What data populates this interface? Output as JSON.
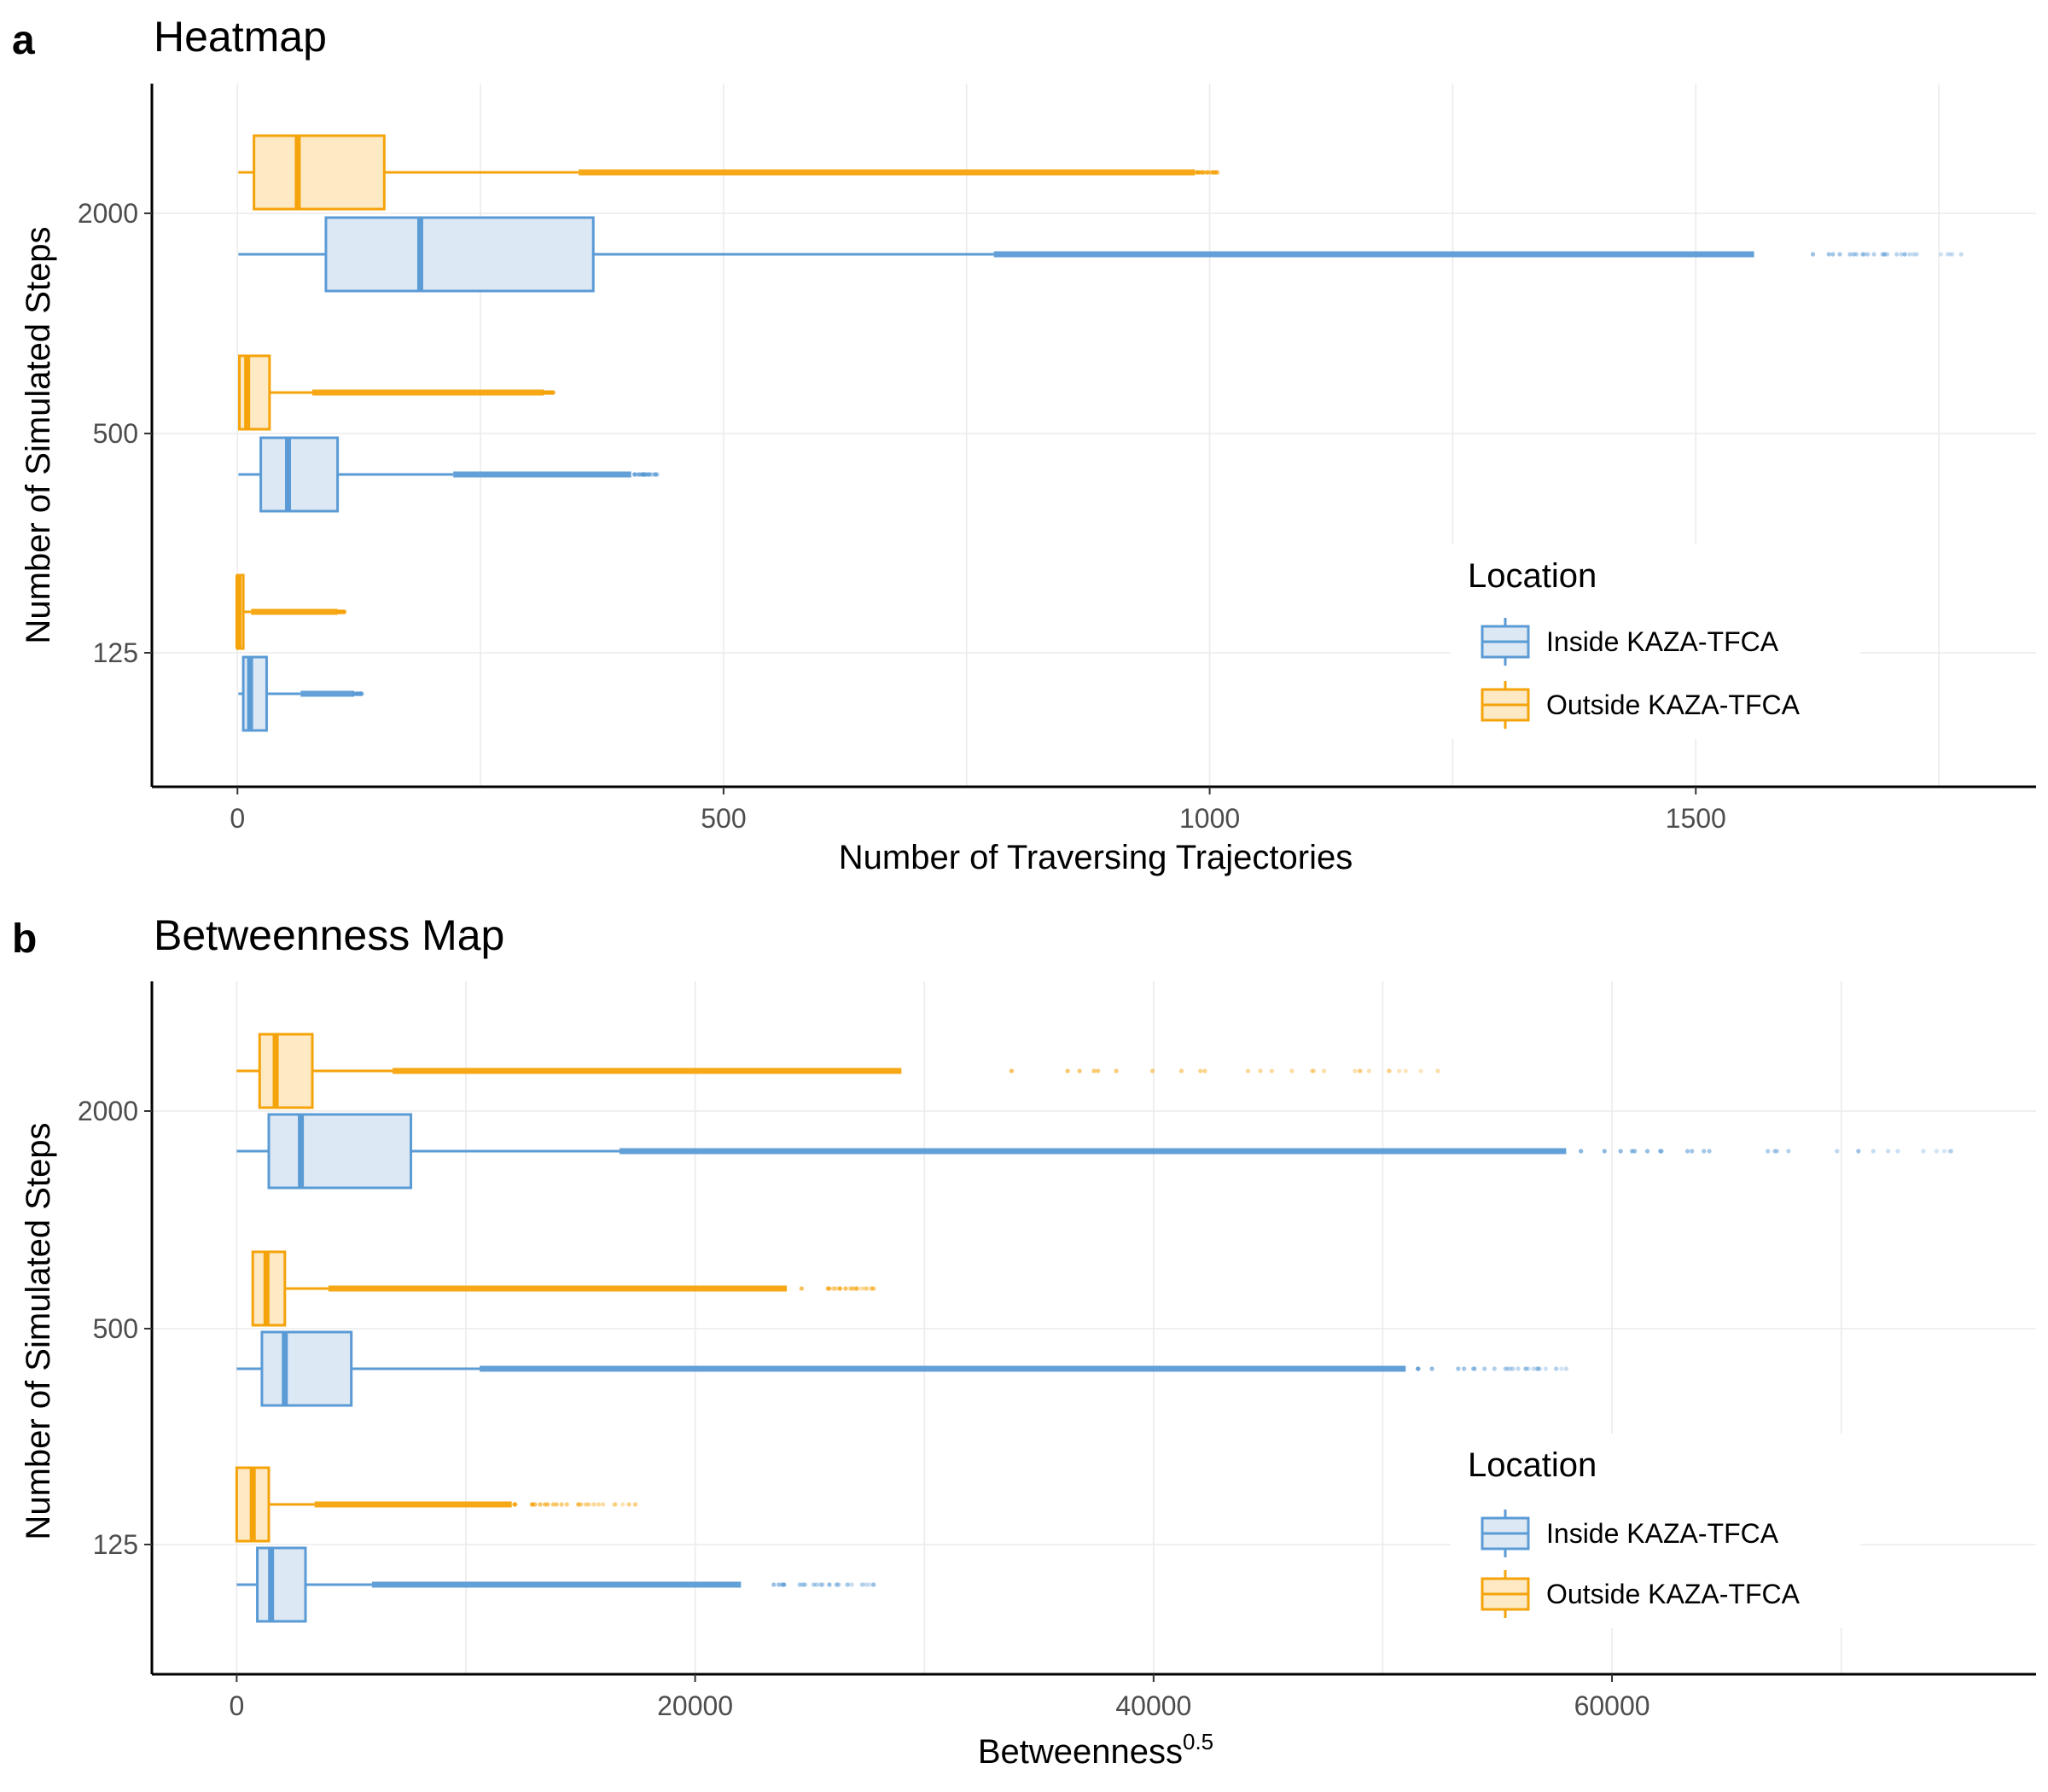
{
  "colors": {
    "inside_stroke": "#5b9bd5",
    "inside_fill": "#dde8f5",
    "outside_stroke": "#f5a30a",
    "outside_fill": "#fde9c4"
  },
  "legend": {
    "title": "Location",
    "items": [
      {
        "label": "Inside KAZA-TFCA",
        "key": "inside"
      },
      {
        "label": "Outside KAZA-TFCA",
        "key": "outside"
      }
    ]
  },
  "panels": [
    {
      "letter": "a",
      "title": "Heatmap",
      "xlabel": "Number of Traversing Trajectories",
      "xlabel_sup": "",
      "ylabel": "Number of Simulated Steps"
    },
    {
      "letter": "b",
      "title": "Betweenness Map",
      "xlabel": "Betweenness",
      "xlabel_sup": "0.5",
      "ylabel": "Number of Simulated Steps"
    }
  ],
  "chart_data": [
    {
      "type": "boxplot",
      "orientation": "horizontal",
      "title": "Heatmap",
      "xlabel": "Number of Traversing Trajectories",
      "ylabel": "Number of Simulated Steps",
      "xlim": [
        -88,
        1850
      ],
      "xticks": [
        0,
        500,
        1000,
        1500
      ],
      "categories": [
        "125",
        "500",
        "2000"
      ],
      "legend_position": "bottom-right",
      "grid": true,
      "series": [
        {
          "name": "Inside KAZA-TFCA",
          "key": "inside",
          "boxes": [
            {
              "category": "125",
              "min": 1,
              "q1": 6,
              "median": 13,
              "q3": 30,
              "whisker_high": 65,
              "outlier_dense_to": 120,
              "outlier_max": 128
            },
            {
              "category": "500",
              "min": 1,
              "q1": 24,
              "median": 52,
              "q3": 103,
              "whisker_high": 222,
              "outlier_dense_to": 405,
              "outlier_max": 432
            },
            {
              "category": "2000",
              "min": 1,
              "q1": 91,
              "median": 188,
              "q3": 366,
              "whisker_high": 778,
              "outlier_dense_to": 1560,
              "outlier_max": 1773
            }
          ]
        },
        {
          "name": "Outside KAZA-TFCA",
          "key": "outside",
          "boxes": [
            {
              "category": "125",
              "min": 0,
              "q1": 0,
              "median": 1,
              "q3": 6,
              "whisker_high": 14,
              "outlier_dense_to": 103,
              "outlier_max": 110
            },
            {
              "category": "500",
              "min": 1,
              "q1": 2,
              "median": 10,
              "q3": 33,
              "whisker_high": 77,
              "outlier_dense_to": 315,
              "outlier_max": 325
            },
            {
              "category": "2000",
              "min": 1,
              "q1": 17,
              "median": 62,
              "q3": 151,
              "whisker_high": 351,
              "outlier_dense_to": 985,
              "outlier_max": 1008
            }
          ]
        }
      ]
    },
    {
      "type": "boxplot",
      "orientation": "horizontal",
      "title": "Betweenness Map",
      "xlabel": "Betweenness^0.5",
      "ylabel": "Number of Simulated Steps",
      "xlim": [
        -3700,
        78500
      ],
      "xticks": [
        0,
        20000,
        40000,
        60000
      ],
      "categories": [
        "125",
        "500",
        "2000"
      ],
      "legend_position": "bottom-right",
      "grid": true,
      "series": [
        {
          "name": "Inside KAZA-TFCA",
          "key": "inside",
          "boxes": [
            {
              "category": "125",
              "min": 0,
              "q1": 900,
              "median": 1500,
              "q3": 3000,
              "whisker_high": 5900,
              "outlier_dense_to": 22000,
              "outlier_max": 27800
            },
            {
              "category": "500",
              "min": 0,
              "q1": 1100,
              "median": 2100,
              "q3": 5000,
              "whisker_high": 10600,
              "outlier_dense_to": 51000,
              "outlier_max": 58000
            },
            {
              "category": "2000",
              "min": 0,
              "q1": 1400,
              "median": 2800,
              "q3": 7600,
              "whisker_high": 16700,
              "outlier_dense_to": 58000,
              "outlier_max": 74800
            }
          ]
        },
        {
          "name": "Outside KAZA-TFCA",
          "key": "outside",
          "boxes": [
            {
              "category": "125",
              "min": 0,
              "q1": 0,
              "median": 700,
              "q3": 1400,
              "whisker_high": 3400,
              "outlier_dense_to": 12000,
              "outlier_max": 17400
            },
            {
              "category": "500",
              "min": 700,
              "q1": 700,
              "median": 1300,
              "q3": 2100,
              "whisker_high": 4000,
              "outlier_dense_to": 24000,
              "outlier_max": 27800
            },
            {
              "category": "2000",
              "min": 0,
              "q1": 1000,
              "median": 1700,
              "q3": 3300,
              "whisker_high": 6800,
              "outlier_dense_to": 29000,
              "outlier_max": 52400
            }
          ]
        }
      ]
    }
  ]
}
